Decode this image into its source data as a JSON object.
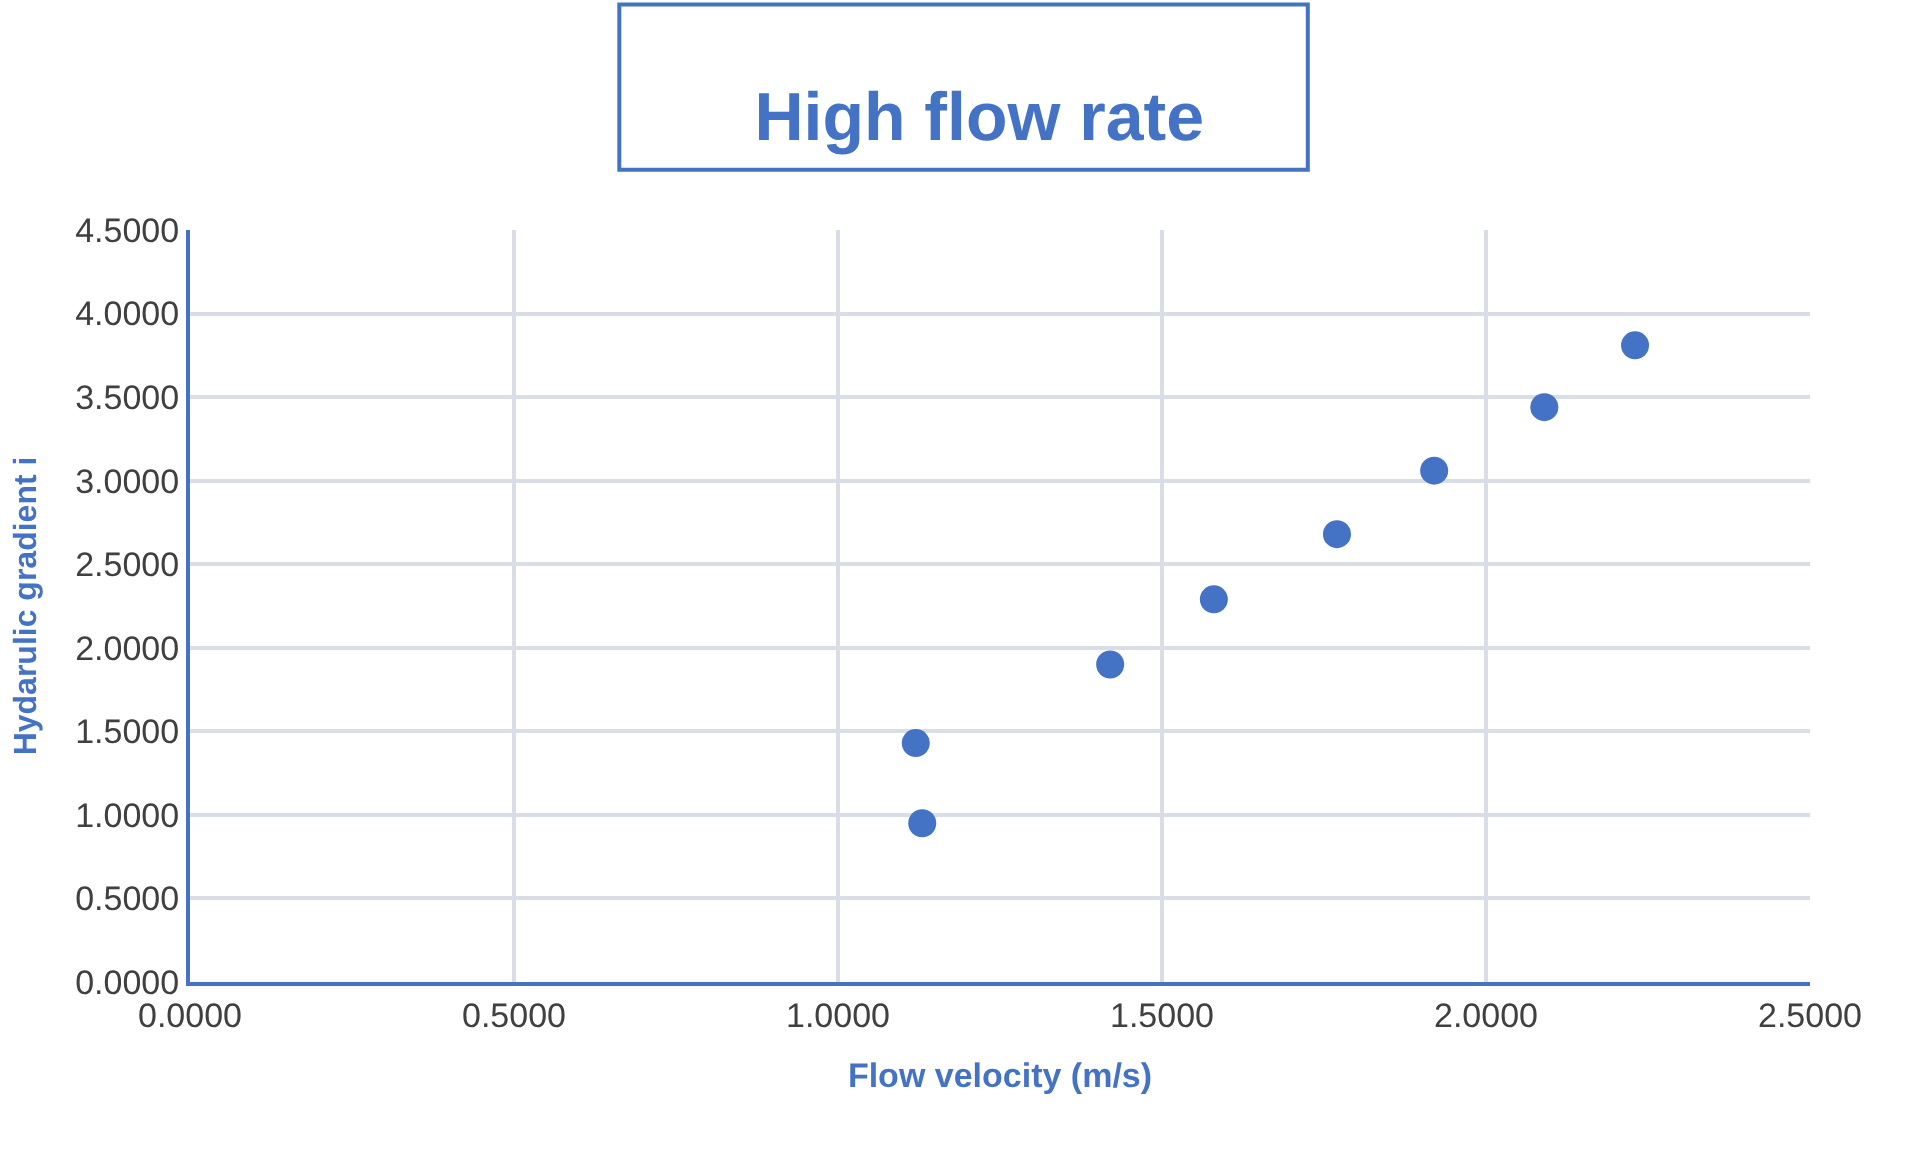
{
  "chart_data": {
    "type": "scatter",
    "title": "High flow rate",
    "xlabel": "Flow velocity (m/s)",
    "ylabel": "Hydarulic gradient i",
    "x": [
      1.12,
      1.13,
      1.42,
      1.58,
      1.77,
      1.92,
      2.09,
      2.23
    ],
    "series": [
      {
        "color": "#4472c4",
        "values": [
          1.43,
          0.95,
          1.9,
          2.29,
          2.68,
          3.06,
          3.44,
          3.81
        ]
      }
    ],
    "xlim": [
      0,
      2.5
    ],
    "ylim": [
      0,
      4.5
    ],
    "xticks": [
      {
        "value": 0,
        "label": "0.0000"
      },
      {
        "value": 0.5,
        "label": "0.5000"
      },
      {
        "value": 1,
        "label": "1.0000"
      },
      {
        "value": 1.5,
        "label": "1.5000"
      },
      {
        "value": 2,
        "label": "2.0000"
      },
      {
        "value": 2.5,
        "label": "2.5000"
      }
    ],
    "yticks": [
      {
        "value": 0,
        "label": "0.0000"
      },
      {
        "value": 0.5,
        "label": "0.5000"
      },
      {
        "value": 1,
        "label": "1.0000"
      },
      {
        "value": 1.5,
        "label": "1.5000"
      },
      {
        "value": 2,
        "label": "2.0000"
      },
      {
        "value": 2.5,
        "label": "2.5000"
      },
      {
        "value": 3,
        "label": "3.0000"
      },
      {
        "value": 3.5,
        "label": "3.5000"
      },
      {
        "value": 4,
        "label": "4.0000"
      },
      {
        "value": 4.5,
        "label": "4.5000"
      }
    ],
    "grid": true,
    "legend": false,
    "marker": "circle"
  }
}
